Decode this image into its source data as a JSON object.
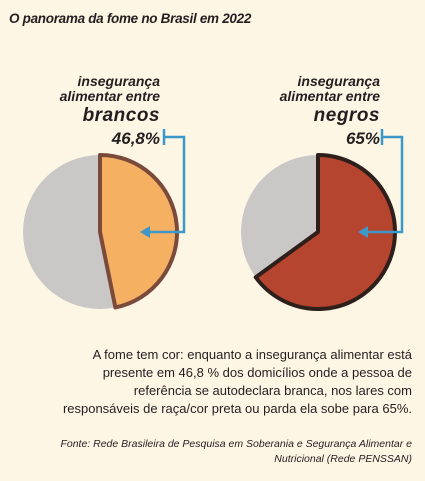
{
  "title": "O panorama da fome no Brasil em 2022",
  "chart_data": [
    {
      "type": "pie",
      "label_lines": [
        "insegurança",
        "alimentar entre"
      ],
      "group": "brancos",
      "value_label": "46,8%",
      "values": [
        46.8,
        53.2
      ],
      "colors": [
        "#f6b062",
        "#c9c8c6"
      ],
      "outline": "#7a4a3a"
    },
    {
      "type": "pie",
      "label_lines": [
        "insegurança",
        "alimentar entre"
      ],
      "group": "negros",
      "value_label": "65%",
      "values": [
        65,
        35
      ],
      "colors": [
        "#b5452f",
        "#c9c8c6"
      ],
      "outline": "#2f1f1a"
    }
  ],
  "description": "A fome tem cor: enquanto a insegurança alimentar está presente em 46,8 % dos domicílios onde a pessoa de referência se autodeclara branca, nos lares com responsáveis de raça/cor preta ou parda ela sobe para 65%.",
  "source": "Fonte: Rede Brasileira de Pesquisa em Soberania e Segurança Alimentar e Nutricional (Rede PENSSAN)",
  "colors": {
    "background": "#fdf6e4",
    "bracket": "#3c98c8"
  }
}
